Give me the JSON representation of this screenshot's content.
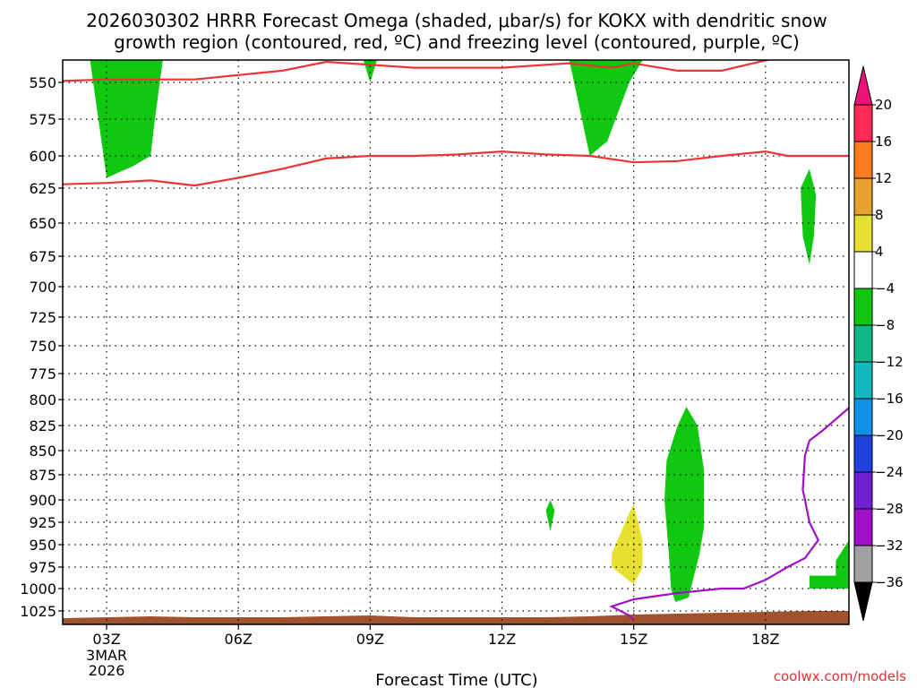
{
  "chart_data": {
    "type": "contour",
    "title_line1": "2026030302 HRRR Forecast Omega (shaded, μbar/s) for KOKX with dendritic snow",
    "title_line2": "growth region (contoured, red, ºC) and freezing level (contoured, purple, ºC)",
    "xlabel": "Forecast Time (UTC)",
    "x_ticks": [
      "03Z",
      "06Z",
      "09Z",
      "12Z",
      "15Z",
      "18Z"
    ],
    "x_tick_hours": [
      3,
      6,
      9,
      12,
      15,
      18
    ],
    "x_range_hours": [
      2,
      19.9
    ],
    "date_lines": [
      "3MAR",
      "2026"
    ],
    "y_ticks": [
      550,
      575,
      600,
      625,
      650,
      675,
      700,
      725,
      750,
      775,
      800,
      825,
      850,
      875,
      900,
      925,
      950,
      975,
      1000,
      1025
    ],
    "y_range": [
      530,
      1040
    ],
    "grid": true,
    "colorbar": {
      "labels": [
        "20",
        "16",
        "12",
        "8",
        "4",
        "−4",
        "−8",
        "−12",
        "−16",
        "−20",
        "−24",
        "−28",
        "−32",
        "−36"
      ],
      "colors": [
        "#ff2a55",
        "#ff7a20",
        "#e8a030",
        "#e8e030",
        "#ffffff",
        "#10c810",
        "#10b888",
        "#10b8c0",
        "#1090e8",
        "#2040e0",
        "#7020d0",
        "#a010c8",
        "#a0a0a0"
      ],
      "top_arrow_color": "#ee1177",
      "bottom_arrow_color": "#000000"
    },
    "omega_regions": [
      {
        "color": "#10c810",
        "points": [
          [
            2.6,
            530
          ],
          [
            3.0,
            617
          ],
          [
            3.6,
            608
          ],
          [
            4.0,
            600
          ],
          [
            4.1,
            575
          ],
          [
            4.3,
            530
          ]
        ]
      },
      {
        "color": "#10c810",
        "points": [
          [
            8.8,
            530
          ],
          [
            9.0,
            550
          ],
          [
            9.2,
            530
          ]
        ]
      },
      {
        "color": "#10c810",
        "points": [
          [
            13.5,
            530
          ],
          [
            14.0,
            600
          ],
          [
            14.4,
            590
          ],
          [
            14.9,
            550
          ],
          [
            15.3,
            530
          ]
        ]
      },
      {
        "color": "#10c810",
        "points": [
          [
            18.8,
            625
          ],
          [
            19.0,
            610
          ],
          [
            19.15,
            630
          ],
          [
            19.1,
            660
          ],
          [
            19.0,
            682
          ],
          [
            18.85,
            660
          ]
        ]
      },
      {
        "color": "#10c810",
        "points": [
          [
            16.0,
            825
          ],
          [
            16.2,
            807
          ],
          [
            16.45,
            825
          ],
          [
            16.6,
            870
          ],
          [
            16.6,
            930
          ],
          [
            16.5,
            960
          ],
          [
            16.35,
            990
          ],
          [
            16.25,
            1010
          ],
          [
            15.95,
            1015
          ],
          [
            15.85,
            1000
          ],
          [
            15.8,
            960
          ],
          [
            15.7,
            900
          ],
          [
            15.75,
            860
          ]
        ]
      },
      {
        "color": "#10c810",
        "points": [
          [
            13.0,
            912
          ],
          [
            13.1,
            900
          ],
          [
            13.2,
            912
          ],
          [
            13.1,
            935
          ]
        ]
      },
      {
        "color": "#10c810",
        "points": [
          [
            19.6,
            968
          ],
          [
            19.9,
            945
          ],
          [
            19.9,
            1000
          ],
          [
            19.0,
            1000
          ],
          [
            19.0,
            985
          ],
          [
            19.6,
            985
          ]
        ]
      },
      {
        "color": "#e8e030",
        "points": [
          [
            14.5,
            960
          ],
          [
            14.9,
            915
          ],
          [
            15.0,
            905
          ],
          [
            15.2,
            945
          ],
          [
            15.2,
            975
          ],
          [
            15.0,
            995
          ],
          [
            14.5,
            975
          ]
        ]
      }
    ],
    "dendritic_lines": [
      {
        "color": "#ee3333",
        "points": [
          [
            2,
            549
          ],
          [
            3,
            548
          ],
          [
            5,
            548
          ],
          [
            6,
            545
          ],
          [
            7,
            542
          ],
          [
            8,
            536
          ],
          [
            10,
            540
          ],
          [
            12,
            540
          ],
          [
            13.5,
            537
          ],
          [
            14.5,
            540
          ],
          [
            15,
            537
          ],
          [
            16,
            542
          ],
          [
            17,
            542
          ],
          [
            18,
            535
          ],
          [
            19.9,
            523
          ]
        ]
      },
      {
        "color": "#ee3333",
        "points": [
          [
            2,
            622
          ],
          [
            3,
            621
          ],
          [
            4,
            619
          ],
          [
            5,
            623
          ],
          [
            6,
            617
          ],
          [
            7,
            610
          ],
          [
            8,
            602
          ],
          [
            9,
            600
          ],
          [
            10,
            600
          ],
          [
            11,
            599
          ],
          [
            12,
            597
          ],
          [
            13,
            599
          ],
          [
            14,
            600
          ],
          [
            15,
            605
          ],
          [
            16,
            604
          ],
          [
            17,
            600
          ],
          [
            18,
            597
          ],
          [
            18.5,
            600
          ],
          [
            19.9,
            600
          ]
        ]
      }
    ],
    "freezing_line": {
      "color": "#a010c8",
      "points": [
        [
          19.9,
          808
        ],
        [
          19.3,
          830
        ],
        [
          19.0,
          840
        ],
        [
          18.9,
          855
        ],
        [
          18.85,
          890
        ],
        [
          18.9,
          900
        ],
        [
          19.0,
          925
        ],
        [
          19.2,
          945
        ],
        [
          18.9,
          965
        ],
        [
          18.5,
          975
        ],
        [
          18.0,
          990
        ],
        [
          17.5,
          1000
        ],
        [
          17.0,
          1000
        ],
        [
          16.0,
          1005
        ],
        [
          15.0,
          1012
        ],
        [
          14.5,
          1020
        ],
        [
          14.9,
          1030
        ],
        [
          15.0,
          1035
        ]
      ]
    },
    "terrain_color": "#a0522d",
    "terrain": [
      [
        2,
        1033
      ],
      [
        3,
        1032
      ],
      [
        4,
        1031
      ],
      [
        5,
        1032
      ],
      [
        6,
        1032
      ],
      [
        7,
        1032
      ],
      [
        8,
        1031
      ],
      [
        9,
        1030
      ],
      [
        10,
        1032
      ],
      [
        11,
        1032
      ],
      [
        12,
        1032
      ],
      [
        13,
        1032
      ],
      [
        14,
        1031
      ],
      [
        15,
        1029
      ],
      [
        16,
        1028
      ],
      [
        17,
        1027
      ],
      [
        18,
        1026
      ],
      [
        19,
        1025
      ],
      [
        19.9,
        1025
      ]
    ],
    "credit": "coolwx.com/models"
  }
}
